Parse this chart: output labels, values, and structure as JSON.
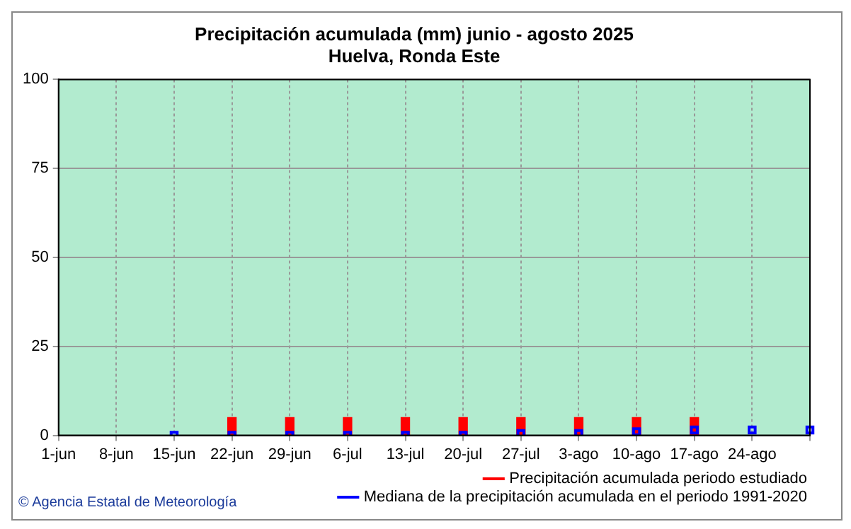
{
  "chart_data": {
    "type": "bar",
    "title": "Precipitación acumulada (mm) junio - agosto 2025",
    "subtitle": "Huelva, Ronda Este",
    "categories": [
      "1-jun",
      "8-jun",
      "15-jun",
      "22-jun",
      "29-jun",
      "6-jul",
      "13-jul",
      "20-jul",
      "27-jul",
      "3-ago",
      "10-ago",
      "17-ago",
      "24-ago",
      null
    ],
    "series": [
      {
        "name": "Precipitación acumulada periodo estudiado",
        "color": "#ff0000",
        "values": [
          null,
          null,
          null,
          5,
          5,
          5,
          5,
          5,
          5,
          5,
          5,
          5,
          null,
          null
        ]
      },
      {
        "name": "Mediana de la precipitación acumulada en el periodo 1991-2020",
        "type": "scatter",
        "marker": "square",
        "color": "#0000ff",
        "values": [
          null,
          null,
          0,
          0,
          0,
          0,
          0,
          0,
          0.5,
          0.5,
          1,
          1.5,
          1.5,
          1.5
        ]
      }
    ],
    "ylim": [
      0,
      100
    ],
    "yticks": [
      0,
      25,
      50,
      75,
      100
    ],
    "grid": true,
    "legend": "bottom right",
    "annotations": [
      "© Agencia Estatal de Meteorología"
    ]
  }
}
